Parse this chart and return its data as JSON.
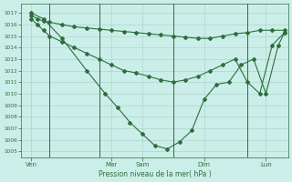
{
  "title": "",
  "xlabel": "Pression niveau de la mer( hPa )",
  "ylabel": "",
  "bg_color": "#cceee8",
  "grid_color": "#aaccc8",
  "line_color": "#2d6e3e",
  "marker_color": "#2d6e3e",
  "ylim": [
    1004.5,
    1017.8
  ],
  "yticks": [
    1005,
    1006,
    1007,
    1008,
    1009,
    1010,
    1011,
    1012,
    1013,
    1014,
    1015,
    1016,
    1017
  ],
  "xlim": [
    -0.3,
    21.3
  ],
  "xtick_labels": [
    "Ven",
    "Mar",
    "Sam",
    "Dim",
    "Lun"
  ],
  "xtick_positions": [
    0.5,
    7.0,
    9.5,
    14.5,
    19.5
  ],
  "vlines": [
    2.0,
    6.0,
    12.0,
    18.0
  ],
  "series1_x": [
    0.5,
    1.0,
    1.5,
    2.0,
    3.0,
    4.0,
    5.0,
    6.0,
    7.0,
    8.0,
    9.0,
    10.0,
    11.0,
    12.0,
    13.0,
    14.0,
    15.0,
    16.0,
    17.0,
    18.0,
    19.0,
    20.0,
    21.0
  ],
  "series1_y": [
    1016.8,
    1016.5,
    1016.3,
    1016.2,
    1016.0,
    1015.8,
    1015.7,
    1015.6,
    1015.5,
    1015.4,
    1015.3,
    1015.2,
    1015.1,
    1015.0,
    1014.9,
    1014.8,
    1014.8,
    1015.0,
    1015.2,
    1015.3,
    1015.5,
    1015.5,
    1015.5
  ],
  "series2_x": [
    0.5,
    1.0,
    1.5,
    2.0,
    3.0,
    4.0,
    5.0,
    6.0,
    7.0,
    8.0,
    9.0,
    10.0,
    11.0,
    12.0,
    13.0,
    14.0,
    15.0,
    16.0,
    17.0,
    18.0,
    19.0,
    20.0,
    21.0
  ],
  "series2_y": [
    1016.5,
    1016.0,
    1015.5,
    1015.0,
    1014.5,
    1014.0,
    1013.5,
    1013.0,
    1012.5,
    1012.0,
    1011.8,
    1011.5,
    1011.2,
    1011.0,
    1011.2,
    1011.5,
    1012.0,
    1012.5,
    1013.0,
    1011.0,
    1010.0,
    1014.2,
    1015.3
  ],
  "series3_x": [
    0.5,
    1.5,
    3.0,
    5.0,
    6.5,
    7.5,
    8.5,
    9.5,
    10.5,
    11.5,
    12.5,
    13.5,
    14.5,
    15.5,
    16.5,
    17.5,
    18.5,
    19.5,
    20.5,
    21.0
  ],
  "series3_y": [
    1017.0,
    1016.5,
    1014.8,
    1012.0,
    1010.0,
    1008.8,
    1007.5,
    1006.5,
    1005.5,
    1005.2,
    1005.8,
    1006.8,
    1009.5,
    1010.8,
    1011.0,
    1012.5,
    1013.0,
    1010.0,
    1014.2,
    1015.3
  ]
}
